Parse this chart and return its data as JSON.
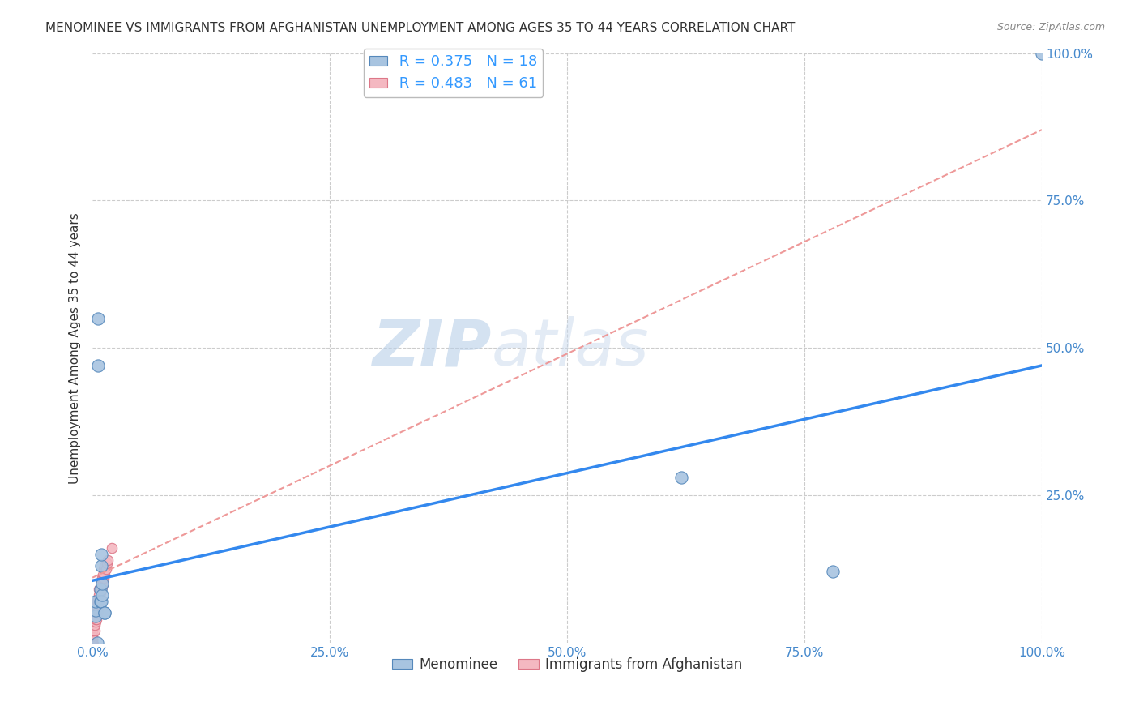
{
  "title": "MENOMINEE VS IMMIGRANTS FROM AFGHANISTAN UNEMPLOYMENT AMONG AGES 35 TO 44 YEARS CORRELATION CHART",
  "source": "Source: ZipAtlas.com",
  "ylabel": "Unemployment Among Ages 35 to 44 years",
  "xlim": [
    0,
    1.0
  ],
  "ylim": [
    0,
    1.0
  ],
  "xticks": [
    0.0,
    0.25,
    0.5,
    0.75,
    1.0
  ],
  "xtick_labels": [
    "0.0%",
    "25.0%",
    "50.0%",
    "75.0%",
    "100.0%"
  ],
  "ytick_right_positions": [
    0.25,
    0.5,
    0.75,
    1.0
  ],
  "ytick_right_labels": [
    "25.0%",
    "50.0%",
    "75.0%",
    "100.0%"
  ],
  "menominee_color": "#a8c4e0",
  "afghanistan_color": "#f4b8c1",
  "menominee_edge": "#5588bb",
  "afghanistan_edge": "#dd7788",
  "trendline_menominee_color": "#3388ee",
  "trendline_afghanistan_color": "#ee9999",
  "legend_R_menominee": "R = 0.375",
  "legend_N_menominee": "N = 18",
  "legend_R_afghanistan": "R = 0.483",
  "legend_N_afghanistan": "N = 61",
  "watermark_zip": "ZIP",
  "watermark_atlas": "atlas",
  "menominee_x": [
    0.003,
    0.003,
    0.003,
    0.005,
    0.006,
    0.006,
    0.008,
    0.008,
    0.009,
    0.009,
    0.009,
    0.01,
    0.01,
    0.013,
    0.013,
    0.62,
    0.78,
    1.0
  ],
  "menominee_y": [
    0.045,
    0.055,
    0.07,
    0.0,
    0.55,
    0.47,
    0.07,
    0.09,
    0.07,
    0.13,
    0.15,
    0.08,
    0.1,
    0.05,
    0.05,
    0.28,
    0.12,
    1.0
  ],
  "afghanistan_x": [
    0.0,
    0.0,
    0.0,
    0.0,
    0.0,
    0.0,
    0.0,
    0.0,
    0.0,
    0.0,
    0.0,
    0.0,
    0.0,
    0.0,
    0.0,
    0.0,
    0.0,
    0.0,
    0.0,
    0.0,
    0.0,
    0.0,
    0.0,
    0.0,
    0.0,
    0.0,
    0.0,
    0.0,
    0.002,
    0.002,
    0.003,
    0.003,
    0.004,
    0.004,
    0.004,
    0.005,
    0.005,
    0.005,
    0.006,
    0.006,
    0.006,
    0.007,
    0.007,
    0.007,
    0.008,
    0.008,
    0.008,
    0.009,
    0.009,
    0.01,
    0.01,
    0.011,
    0.011,
    0.012,
    0.012,
    0.013,
    0.013,
    0.014,
    0.015,
    0.016,
    0.02
  ],
  "afghanistan_y": [
    0.0,
    0.0,
    0.0,
    0.0,
    0.0,
    0.0,
    0.0,
    0.0,
    0.0,
    0.0,
    0.0,
    0.0,
    0.005,
    0.005,
    0.008,
    0.01,
    0.012,
    0.015,
    0.015,
    0.02,
    0.02,
    0.025,
    0.025,
    0.03,
    0.03,
    0.035,
    0.04,
    0.04,
    0.02,
    0.03,
    0.035,
    0.04,
    0.04,
    0.05,
    0.06,
    0.05,
    0.06,
    0.07,
    0.055,
    0.065,
    0.075,
    0.07,
    0.08,
    0.09,
    0.075,
    0.085,
    0.095,
    0.09,
    0.1,
    0.095,
    0.11,
    0.1,
    0.115,
    0.11,
    0.125,
    0.115,
    0.13,
    0.125,
    0.135,
    0.14,
    0.16
  ],
  "trendline_men_x0": 0.0,
  "trendline_men_y0": 0.105,
  "trendline_men_x1": 1.0,
  "trendline_men_y1": 0.47,
  "trendline_afg_x0": 0.0,
  "trendline_afg_y0": 0.11,
  "trendline_afg_x1": 1.0,
  "trendline_afg_y1": 0.87,
  "marker_size_menominee": 120,
  "marker_size_afghanistan": 80,
  "background_color": "#ffffff",
  "grid_color": "#cccccc",
  "tick_color": "#4488cc",
  "title_fontsize": 11,
  "source_fontsize": 9,
  "axis_label_fontsize": 11,
  "tick_fontsize": 11,
  "legend_fontsize": 13
}
